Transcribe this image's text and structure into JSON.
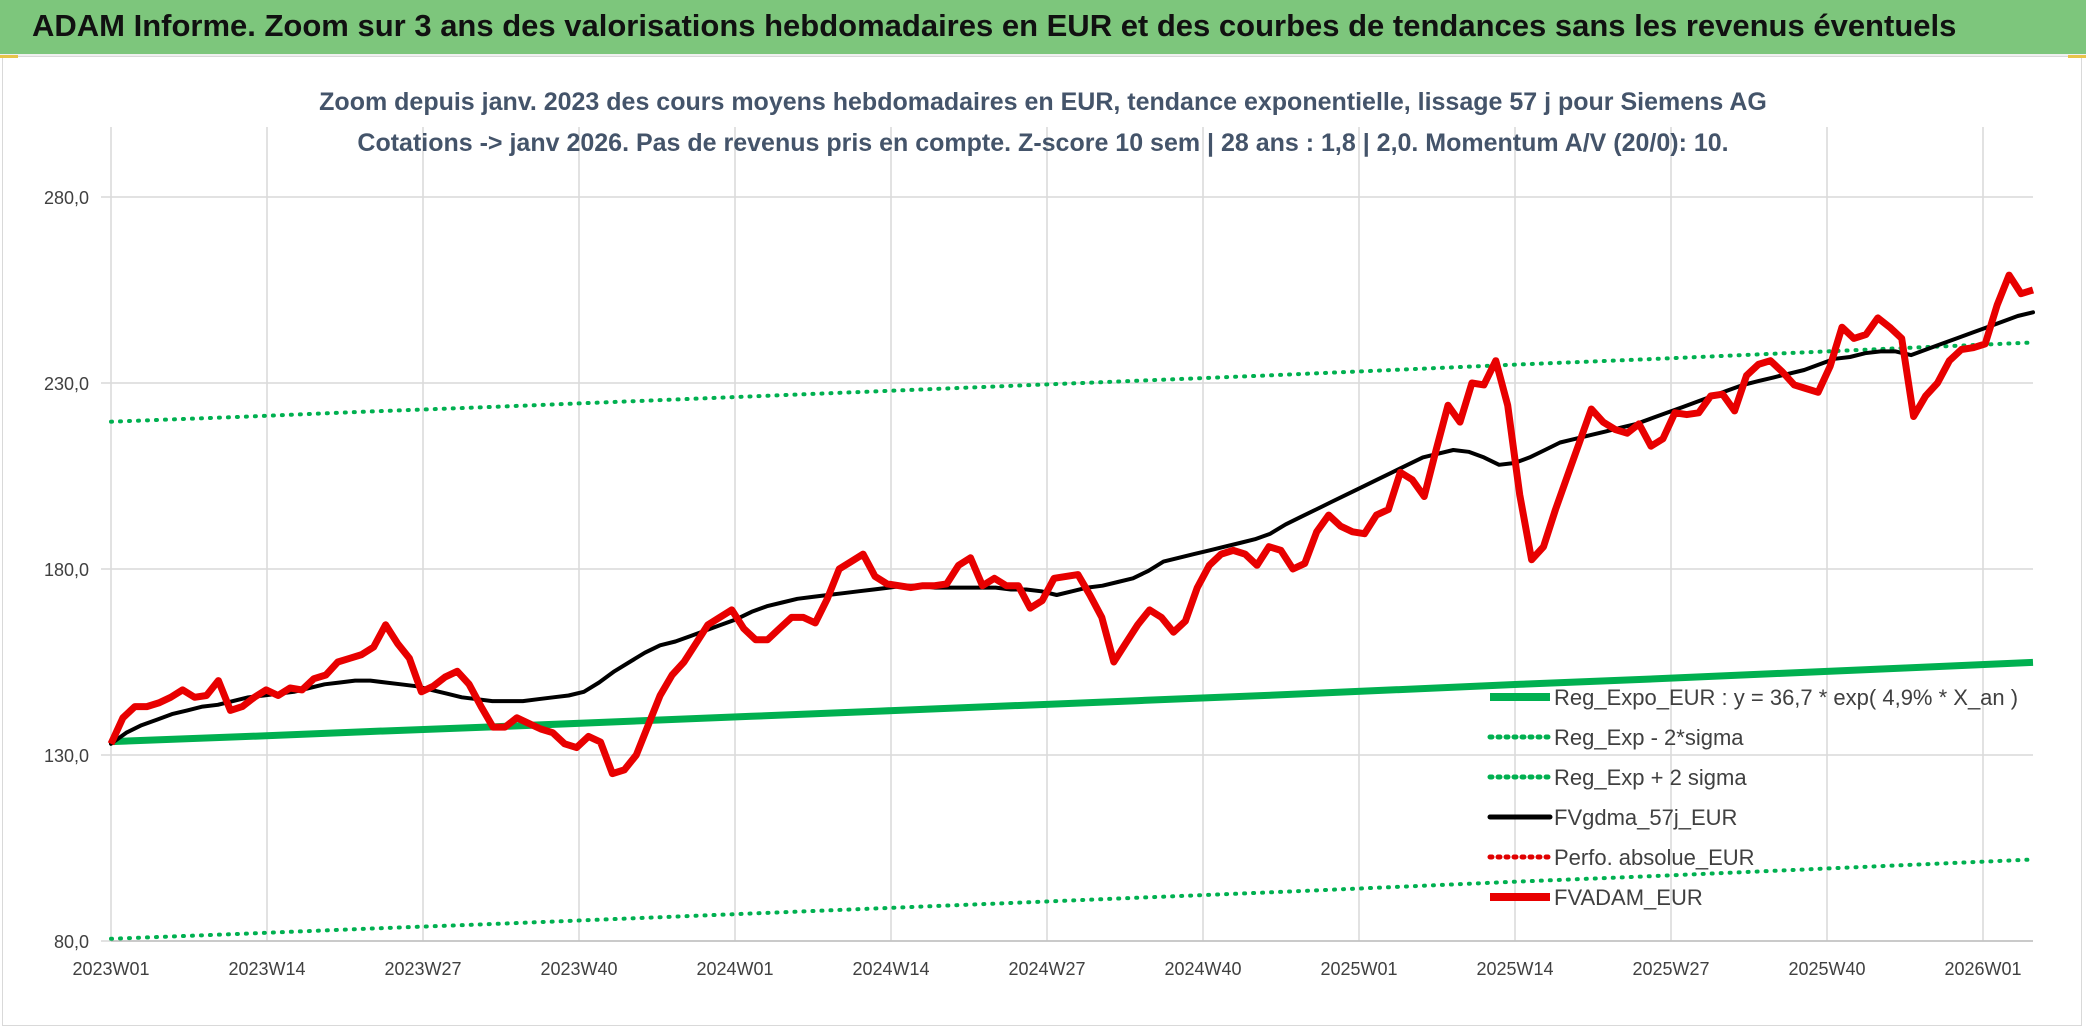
{
  "header": {
    "title": "ADAM Informe. Zoom sur 3 ans des valorisations hebdomadaires en EUR et des courbes de tendances sans les revenus éventuels"
  },
  "chart_data": {
    "type": "line",
    "title": "",
    "subtitle_lines": [
      "Zoom depuis janv. 2023 des cours moyens hebdomadaires en EUR, tendance exponentielle, lissage 57 j pour Siemens AG",
      "Cotations -> janv 2026. Pas de revenus pris en compte. Z-score 10 sem | 28 ans : 1,8 | 2,0. Momentum A/V (20/0): 10."
    ],
    "xlabel": "",
    "ylabel": "",
    "ylim": [
      80,
      280
    ],
    "y_ticks": [
      "280,0",
      "230,0",
      "180,0",
      "130,0",
      "80,0"
    ],
    "y_tick_values": [
      280,
      230,
      180,
      130,
      80
    ],
    "x_range_weeks": [
      0,
      124
    ],
    "x_tick_labels": [
      "2023W01",
      "2023W14",
      "2023W27",
      "2023W40",
      "2024W01",
      "2024W14",
      "2024W27",
      "2024W40",
      "2025W01",
      "2025W14",
      "2025W27",
      "2025W40",
      "2026W01"
    ],
    "grid": true,
    "legend_position": "bottom-right",
    "series": [
      {
        "name": "Reg_Expo_EUR : y = 36,7 * exp( 4,9% *  X_an )",
        "color": "#00b050",
        "style": "solid-thick",
        "values": [
          133.6,
          134.9,
          136.3,
          137.6,
          139.0,
          140.4,
          141.8,
          143.2,
          144.6,
          146.0,
          147.5,
          149.0,
          150.4,
          151.9,
          153.4,
          154.9
        ]
      },
      {
        "name": "Reg_Exp - 2*sigma",
        "color": "#00b050",
        "style": "dotted",
        "values": [
          80.6,
          81.9,
          83.3,
          84.6,
          86.0,
          87.4,
          88.8,
          90.2,
          91.6,
          93.0,
          94.5,
          96.0,
          97.4,
          98.9,
          100.4,
          101.9
        ]
      },
      {
        "name": "Reg_Exp + 2 sigma",
        "color": "#00b050",
        "style": "dotted",
        "values": [
          219.6,
          220.9,
          222.3,
          223.6,
          225.0,
          226.4,
          227.8,
          229.2,
          230.6,
          232.0,
          233.5,
          235.0,
          236.4,
          237.9,
          239.4,
          240.9
        ]
      },
      {
        "name": "FVgdma_57j_EUR",
        "color": "#000000",
        "style": "solid",
        "values": [
          133,
          136,
          138,
          139.5,
          141,
          142,
          143,
          143.5,
          144.5,
          145.5,
          146,
          146.5,
          147,
          148,
          149,
          149.5,
          150,
          150,
          149.5,
          149,
          148.5,
          147.5,
          146.5,
          145.5,
          145,
          144.5,
          144.5,
          144.5,
          145,
          145.5,
          146,
          147,
          149.5,
          152.5,
          155,
          157.5,
          159.5,
          160.5,
          162,
          163.5,
          165,
          166.5,
          168.5,
          170,
          171,
          172,
          172.5,
          173,
          173.5,
          174,
          174.5,
          175,
          175.5,
          175.5,
          175,
          175,
          175,
          175,
          175,
          174.5,
          174.5,
          174,
          173,
          174,
          175,
          175.5,
          176.5,
          177.5,
          179.5,
          182,
          183,
          184,
          185,
          186,
          187,
          188,
          189.5,
          192,
          194,
          196,
          198,
          200,
          202,
          204,
          206,
          208,
          210,
          211,
          212,
          211.5,
          210,
          208,
          208.5,
          210,
          212,
          214,
          215,
          216,
          217,
          218,
          219,
          220.5,
          222,
          223.5,
          225,
          226.5,
          228,
          229.5,
          230.5,
          231.5,
          232.5,
          233.5,
          235,
          236.5,
          237,
          238,
          238.5,
          238.5,
          237.5,
          239,
          240.5,
          242,
          243.5,
          245,
          246.5,
          248,
          249
        ]
      },
      {
        "name": "Perfo. absolue_EUR",
        "color": "#e00000",
        "style": "dotted",
        "values": []
      },
      {
        "name": "FVADAM_EUR",
        "color": "#e80000",
        "style": "solid-thick",
        "values": [
          133,
          140,
          143,
          143,
          144,
          145.5,
          147.5,
          145.5,
          146,
          150,
          142,
          143,
          145.5,
          147.5,
          146,
          148,
          147.5,
          150.5,
          151.5,
          155,
          156,
          157,
          159,
          165,
          160,
          156,
          147,
          148.5,
          151,
          152.5,
          149,
          143,
          137.5,
          137.5,
          140,
          138.5,
          137,
          136,
          133,
          132,
          135,
          133.5,
          125,
          126,
          130,
          138,
          146,
          151.5,
          155,
          160,
          165,
          167,
          169,
          164,
          161,
          161,
          164,
          167,
          167,
          165.5,
          172,
          180,
          182,
          184,
          178,
          176,
          175.5,
          175,
          175.5,
          175.5,
          176,
          181,
          183,
          175.5,
          177.5,
          175.5,
          175.5,
          169.5,
          171.5,
          177.5,
          178,
          178.5,
          173,
          167,
          155,
          160,
          165,
          169,
          167,
          163,
          166,
          175,
          181,
          184,
          185,
          184,
          181,
          186,
          185,
          180,
          181.5,
          190,
          194.5,
          191.5,
          190,
          189.5,
          194.5,
          196,
          206,
          204,
          199.5,
          212,
          224,
          219.5,
          230,
          229.5,
          236,
          224,
          200,
          182.5,
          186,
          196,
          205,
          214,
          223,
          219.5,
          217.5,
          216.5,
          219,
          213,
          215,
          222,
          221.5,
          222,
          226.5,
          227,
          222.5,
          232,
          235,
          236,
          233,
          229.5,
          228.5,
          227.5,
          234.5,
          245,
          242,
          243,
          247.5,
          245,
          242,
          221,
          226.5,
          230,
          236,
          239,
          239.5,
          240.5,
          251,
          259,
          254,
          255
        ]
      }
    ]
  }
}
